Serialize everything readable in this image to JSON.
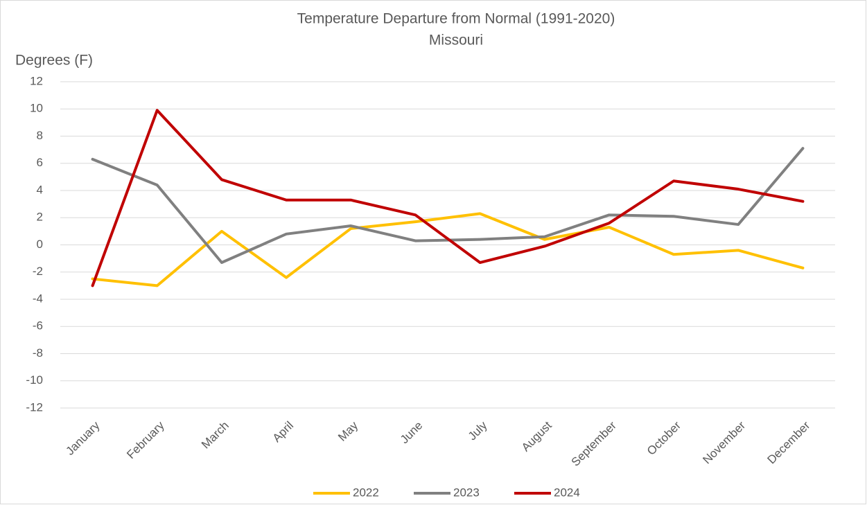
{
  "chart_data": {
    "type": "line",
    "title": "Temperature Departure from Normal (1991-2020)",
    "subtitle": "Missouri",
    "y_label": "Degrees (F)",
    "categories": [
      "January",
      "February",
      "March",
      "April",
      "May",
      "June",
      "July",
      "August",
      "September",
      "October",
      "November",
      "December"
    ],
    "series": [
      {
        "name": "2022",
        "color": "#ffc000",
        "values": [
          -2.5,
          -3.0,
          1.0,
          -2.4,
          1.2,
          1.7,
          2.3,
          0.4,
          1.3,
          -0.7,
          -0.4,
          -1.7
        ]
      },
      {
        "name": "2023",
        "color": "#808080",
        "values": [
          6.3,
          4.4,
          -1.3,
          0.8,
          1.4,
          0.3,
          0.4,
          0.6,
          2.2,
          2.1,
          1.5,
          7.1
        ]
      },
      {
        "name": "2024",
        "color": "#c00000",
        "values": [
          -3.0,
          9.9,
          4.8,
          3.3,
          3.3,
          2.2,
          -1.3,
          -0.1,
          1.6,
          4.7,
          4.1,
          3.2
        ]
      }
    ],
    "ylim": [
      -12,
      12
    ],
    "yticks": [
      -12,
      -10,
      -8,
      -6,
      -4,
      -2,
      0,
      2,
      4,
      6,
      8,
      10,
      12
    ],
    "grid": true,
    "legend": "bottom"
  }
}
